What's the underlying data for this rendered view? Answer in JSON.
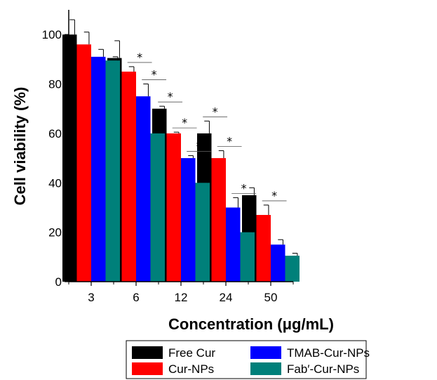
{
  "chart_data": {
    "type": "bar",
    "categories": [
      "3",
      "6",
      "12",
      "24",
      "50"
    ],
    "series": [
      {
        "name": "Free Cur",
        "color": "#000000",
        "values": [
          100,
          90.5,
          70,
          60,
          35
        ],
        "errors": [
          6,
          7,
          1,
          5,
          3
        ]
      },
      {
        "name": "Cur-NPs",
        "color": "#ff0000",
        "values": [
          96,
          85,
          60,
          50,
          27
        ],
        "errors": [
          5,
          2,
          0.5,
          3,
          4
        ]
      },
      {
        "name": "TMAB-Cur-NPs",
        "color": "#0000ff",
        "values": [
          91,
          75,
          50,
          30,
          15
        ],
        "errors": [
          3,
          5,
          1,
          4,
          2
        ]
      },
      {
        "name": "Fab′-Cur-NPs",
        "color": "#00807a",
        "values": [
          89.5,
          60,
          40,
          20,
          10.5
        ],
        "errors": [
          1.5,
          5,
          3,
          4,
          1
        ]
      }
    ],
    "significance": [
      {
        "category": "6",
        "between": [
          "Cur-NPs",
          "TMAB-Cur-NPs"
        ],
        "label": "*"
      },
      {
        "category": "6",
        "between": [
          "TMAB-Cur-NPs",
          "Fab′-Cur-NPs"
        ],
        "label": "*"
      },
      {
        "category": "12",
        "between": [
          "Free Cur",
          "Cur-NPs"
        ],
        "label": "*"
      },
      {
        "category": "12",
        "between": [
          "Cur-NPs",
          "TMAB-Cur-NPs"
        ],
        "label": "*"
      },
      {
        "category": "12",
        "between": [
          "TMAB-Cur-NPs",
          "Fab′-Cur-NPs"
        ],
        "label": "*"
      },
      {
        "category": "24",
        "between": [
          "Free Cur",
          "Cur-NPs"
        ],
        "label": "*"
      },
      {
        "category": "24",
        "between": [
          "Cur-NPs",
          "TMAB-Cur-NPs"
        ],
        "label": "*"
      },
      {
        "category": "24",
        "between": [
          "TMAB-Cur-NPs",
          "Fab′-Cur-NPs"
        ],
        "label": "*"
      },
      {
        "category": "50",
        "between": [
          "Cur-NPs",
          "TMAB-Cur-NPs"
        ],
        "label": "*"
      }
    ],
    "title": "",
    "xlabel": "Concentration (μg/mL)",
    "ylabel": "Cell viability (%)",
    "ylim": [
      0,
      110
    ],
    "yticks": [
      0,
      20,
      40,
      60,
      80,
      100
    ],
    "grid": false,
    "legend_position": "bottom"
  }
}
